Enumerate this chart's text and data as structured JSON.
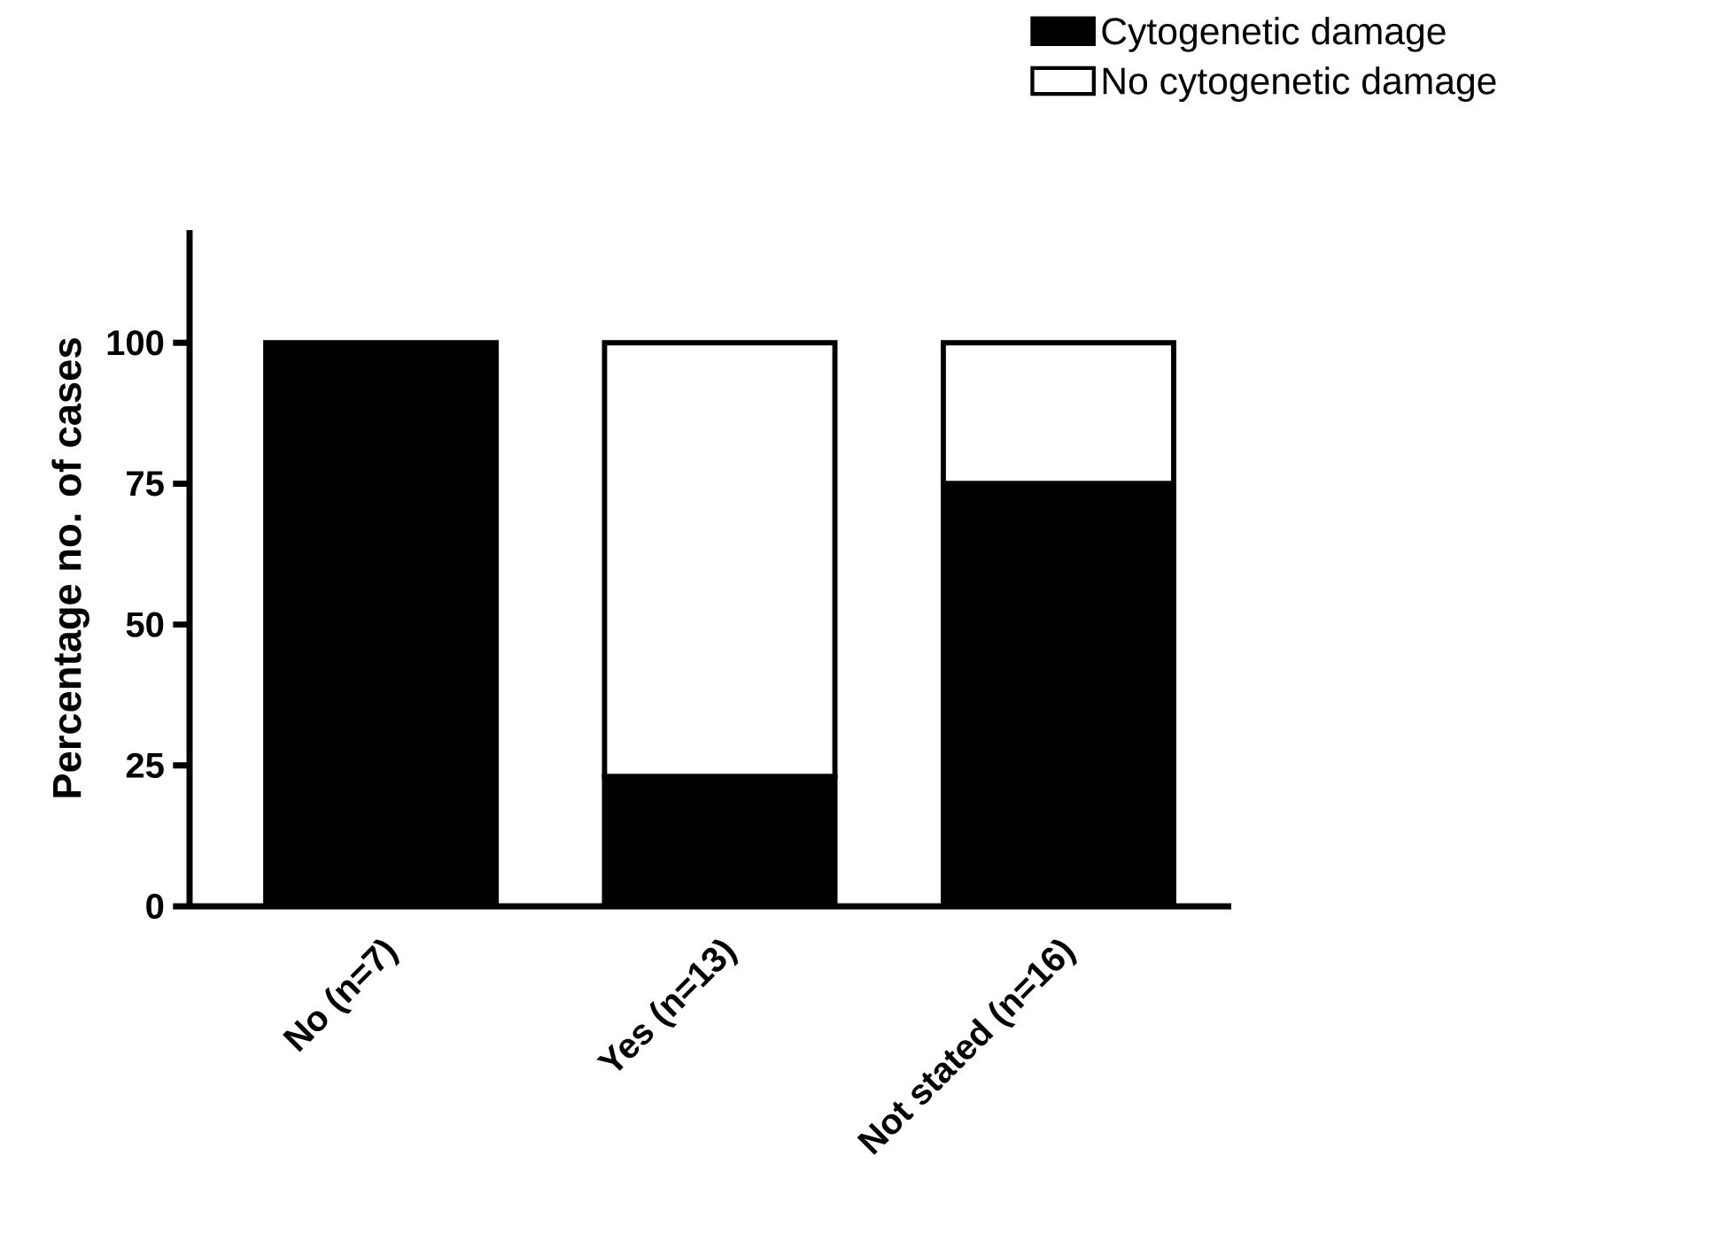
{
  "chart_data": {
    "type": "bar",
    "stacked": true,
    "ylabel": "Percentage no. of cases",
    "categories": [
      "No (n=7)",
      "Yes (n=13)",
      "Not stated (n=16)"
    ],
    "series": [
      {
        "name": "Cytogenetic damage",
        "color": "#000000",
        "values": [
          100,
          23,
          75
        ]
      },
      {
        "name": "No cytogenetic damage",
        "color": "#ffffff",
        "values": [
          0,
          77,
          25
        ]
      }
    ],
    "ylim": [
      0,
      120
    ],
    "yticks": [
      0,
      25,
      50,
      75,
      100
    ],
    "legend": "top right"
  }
}
